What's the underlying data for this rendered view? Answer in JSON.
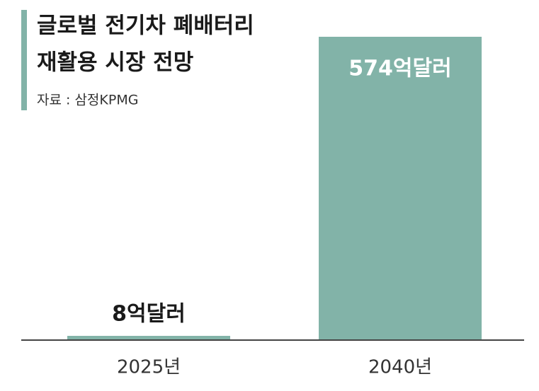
{
  "chart_data": {
    "type": "bar",
    "title": [
      "글로벌 전기차 폐배터리",
      "재활용 시장 전망"
    ],
    "subtitle": "자료 : 삼정KPMG",
    "categories": [
      "2025년",
      "2040년"
    ],
    "values": [
      8,
      574
    ],
    "value_labels": [
      "8억달러",
      "574억달러"
    ],
    "color": "#82b3a8"
  }
}
